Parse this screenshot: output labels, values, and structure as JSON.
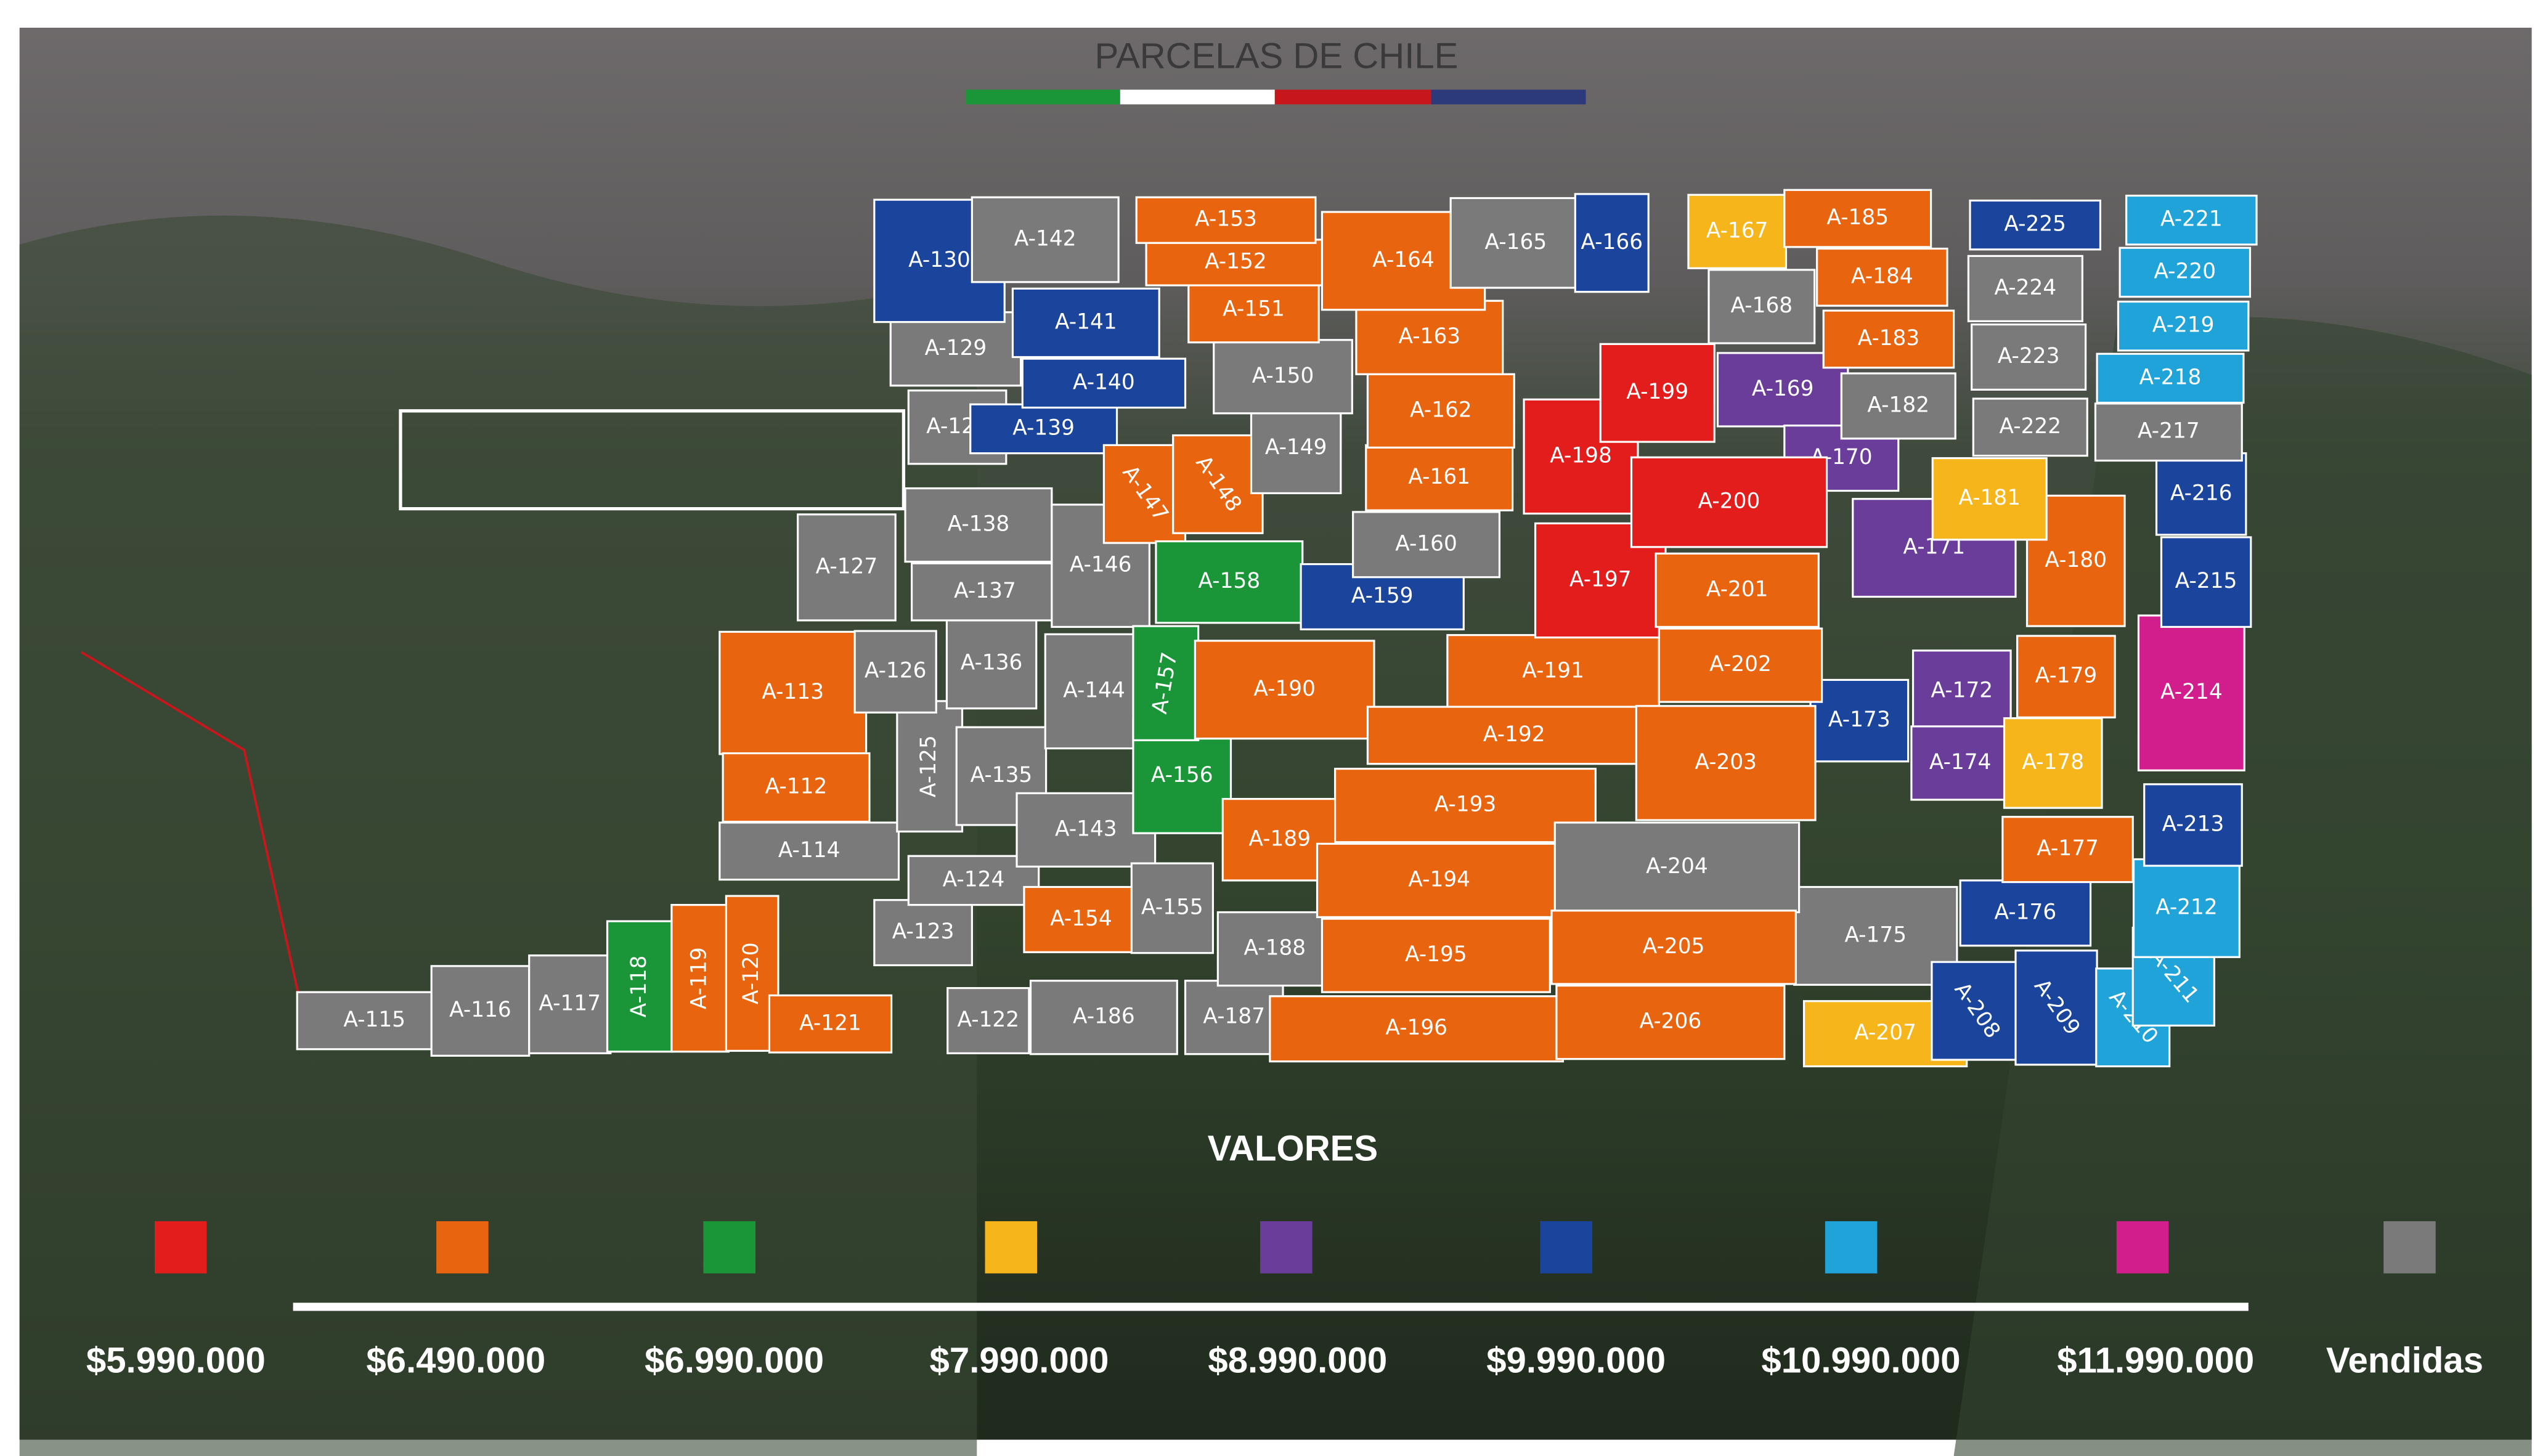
{
  "header": {
    "title": "PARCELAS DE CHILE"
  },
  "parcels": [
    {
      "label": "A-113",
      "color": "#e8640f"
    },
    {
      "label": "A-112",
      "color": "#e8640f"
    },
    {
      "label": "A-114",
      "color": "#7a7a7a"
    },
    {
      "label": "A-115",
      "color": "#7a7a7a"
    },
    {
      "label": "A-116",
      "color": "#7a7a7a"
    },
    {
      "label": "A-117",
      "color": "#7a7a7a"
    },
    {
      "label": "A-118",
      "color": "#1a9638"
    },
    {
      "label": "A-119",
      "color": "#e8640f"
    },
    {
      "label": "A-120",
      "color": "#e8640f"
    },
    {
      "label": "A-121",
      "color": "#e8640f"
    },
    {
      "label": "A-122",
      "color": "#7a7a7a"
    },
    {
      "label": "A-123",
      "color": "#7a7a7a"
    },
    {
      "label": "A-124",
      "color": "#7a7a7a"
    },
    {
      "label": "A-125",
      "color": "#7a7a7a"
    },
    {
      "label": "A-126",
      "color": "#7a7a7a"
    },
    {
      "label": "A-127",
      "color": "#7a7a7a"
    },
    {
      "label": "A-128",
      "color": "#7a7a7a"
    },
    {
      "label": "A-129",
      "color": "#7a7a7a"
    },
    {
      "label": "A-130",
      "color": "#1b449c"
    },
    {
      "label": "A-135",
      "color": "#7a7a7a"
    },
    {
      "label": "A-136",
      "color": "#7a7a7a"
    },
    {
      "label": "A-137",
      "color": "#7a7a7a"
    },
    {
      "label": "A-138",
      "color": "#7a7a7a"
    },
    {
      "label": "A-139",
      "color": "#1b449c"
    },
    {
      "label": "A-140",
      "color": "#1b449c"
    },
    {
      "label": "A-141",
      "color": "#1b449c"
    },
    {
      "label": "A-142",
      "color": "#7a7a7a"
    },
    {
      "label": "A-143",
      "color": "#7a7a7a"
    },
    {
      "label": "A-144",
      "color": "#7a7a7a"
    },
    {
      "label": "A-146",
      "color": "#7a7a7a"
    },
    {
      "label": "A-147",
      "color": "#e8640f"
    },
    {
      "label": "A-148",
      "color": "#e8640f"
    },
    {
      "label": "A-149",
      "color": "#7a7a7a"
    },
    {
      "label": "A-150",
      "color": "#7a7a7a"
    },
    {
      "label": "A-151",
      "color": "#e8640f"
    },
    {
      "label": "A-152",
      "color": "#e8640f"
    },
    {
      "label": "A-153",
      "color": "#e8640f"
    },
    {
      "label": "A-154",
      "color": "#e8640f"
    },
    {
      "label": "A-155",
      "color": "#7a7a7a"
    },
    {
      "label": "A-156",
      "color": "#1a9638"
    },
    {
      "label": "A-157",
      "color": "#1a9638"
    },
    {
      "label": "A-158",
      "color": "#1a9638"
    },
    {
      "label": "A-159",
      "color": "#1b449c"
    },
    {
      "label": "A-160",
      "color": "#7a7a7a"
    },
    {
      "label": "A-161",
      "color": "#e8640f"
    },
    {
      "label": "A-162",
      "color": "#e8640f"
    },
    {
      "label": "A-163",
      "color": "#e8640f"
    },
    {
      "label": "A-164",
      "color": "#e8640f"
    },
    {
      "label": "A-165",
      "color": "#7a7a7a"
    },
    {
      "label": "A-166",
      "color": "#1b449c"
    },
    {
      "label": "A-167",
      "color": "#f5b51b"
    },
    {
      "label": "A-168",
      "color": "#7a7a7a"
    },
    {
      "label": "A-169",
      "color": "#6a3d9a"
    },
    {
      "label": "A-170",
      "color": "#6a3d9a"
    },
    {
      "label": "A-171",
      "color": "#6a3d9a"
    },
    {
      "label": "A-172",
      "color": "#6a3d9a"
    },
    {
      "label": "A-173",
      "color": "#1b449c"
    },
    {
      "label": "A-174",
      "color": "#6a3d9a"
    },
    {
      "label": "A-175",
      "color": "#7a7a7a"
    },
    {
      "label": "A-176",
      "color": "#1b449c"
    },
    {
      "label": "A-177",
      "color": "#e8640f"
    },
    {
      "label": "A-178",
      "color": "#f5b51b"
    },
    {
      "label": "A-179",
      "color": "#e8640f"
    },
    {
      "label": "A-180",
      "color": "#e8640f"
    },
    {
      "label": "A-181",
      "color": "#f5b51b"
    },
    {
      "label": "A-182",
      "color": "#7a7a7a"
    },
    {
      "label": "A-183",
      "color": "#e8640f"
    },
    {
      "label": "A-184",
      "color": "#e8640f"
    },
    {
      "label": "A-185",
      "color": "#e8640f"
    },
    {
      "label": "A-186",
      "color": "#7a7a7a"
    },
    {
      "label": "A-187",
      "color": "#7a7a7a"
    },
    {
      "label": "A-188",
      "color": "#7a7a7a"
    },
    {
      "label": "A-189",
      "color": "#e8640f"
    },
    {
      "label": "A-190",
      "color": "#e8640f"
    },
    {
      "label": "A-191",
      "color": "#e8640f"
    },
    {
      "label": "A-192",
      "color": "#e8640f"
    },
    {
      "label": "A-193",
      "color": "#e8640f"
    },
    {
      "label": "A-194",
      "color": "#e8640f"
    },
    {
      "label": "A-195",
      "color": "#e8640f"
    },
    {
      "label": "A-196",
      "color": "#e8640f"
    },
    {
      "label": "A-197",
      "color": "#e31c1c"
    },
    {
      "label": "A-198",
      "color": "#e31c1c"
    },
    {
      "label": "A-199",
      "color": "#e31c1c"
    },
    {
      "label": "A-200",
      "color": "#e31c1c"
    },
    {
      "label": "A-201",
      "color": "#e8640f"
    },
    {
      "label": "A-202",
      "color": "#e8640f"
    },
    {
      "label": "A-203",
      "color": "#e8640f"
    },
    {
      "label": "A-204",
      "color": "#7a7a7a"
    },
    {
      "label": "A-205",
      "color": "#e8640f"
    },
    {
      "label": "A-206",
      "color": "#e8640f"
    },
    {
      "label": "A-207",
      "color": "#f5b51b"
    },
    {
      "label": "A-208",
      "color": "#1b449c"
    },
    {
      "label": "A-209",
      "color": "#1b449c"
    },
    {
      "label": "A-210",
      "color": "#1fa3d8"
    },
    {
      "label": "A-211",
      "color": "#1fa3d8"
    },
    {
      "label": "A-212",
      "color": "#1fa3d8"
    },
    {
      "label": "A-213",
      "color": "#1b449c"
    },
    {
      "label": "A-214",
      "color": "#d21e8c"
    },
    {
      "label": "A-215",
      "color": "#1b449c"
    },
    {
      "label": "A-216",
      "color": "#1b449c"
    },
    {
      "label": "A-217",
      "color": "#7a7a7a"
    },
    {
      "label": "A-218",
      "color": "#1fa3d8"
    },
    {
      "label": "A-219",
      "color": "#1fa3d8"
    },
    {
      "label": "A-220",
      "color": "#1fa3d8"
    },
    {
      "label": "A-221",
      "color": "#1fa3d8"
    },
    {
      "label": "A-222",
      "color": "#7a7a7a"
    },
    {
      "label": "A-223",
      "color": "#7a7a7a"
    },
    {
      "label": "A-224",
      "color": "#7a7a7a"
    },
    {
      "label": "A-225",
      "color": "#1b449c"
    }
  ],
  "legend": {
    "title": "VALORES",
    "items": [
      {
        "label": "$5.990.000",
        "color": "#e31c1c"
      },
      {
        "label": "$6.490.000",
        "color": "#e8640f"
      },
      {
        "label": "$6.990.000",
        "color": "#1a9638"
      },
      {
        "label": "$7.990.000",
        "color": "#f5b51b"
      },
      {
        "label": "$8.990.000",
        "color": "#6a3d9a"
      },
      {
        "label": "$9.990.000",
        "color": "#1b449c"
      },
      {
        "label": "$10.990.000",
        "color": "#1fa3d8"
      },
      {
        "label": "$11.990.000",
        "color": "#d21e8c"
      },
      {
        "label": "Vendidas",
        "color": "#7a7a7a"
      }
    ]
  }
}
